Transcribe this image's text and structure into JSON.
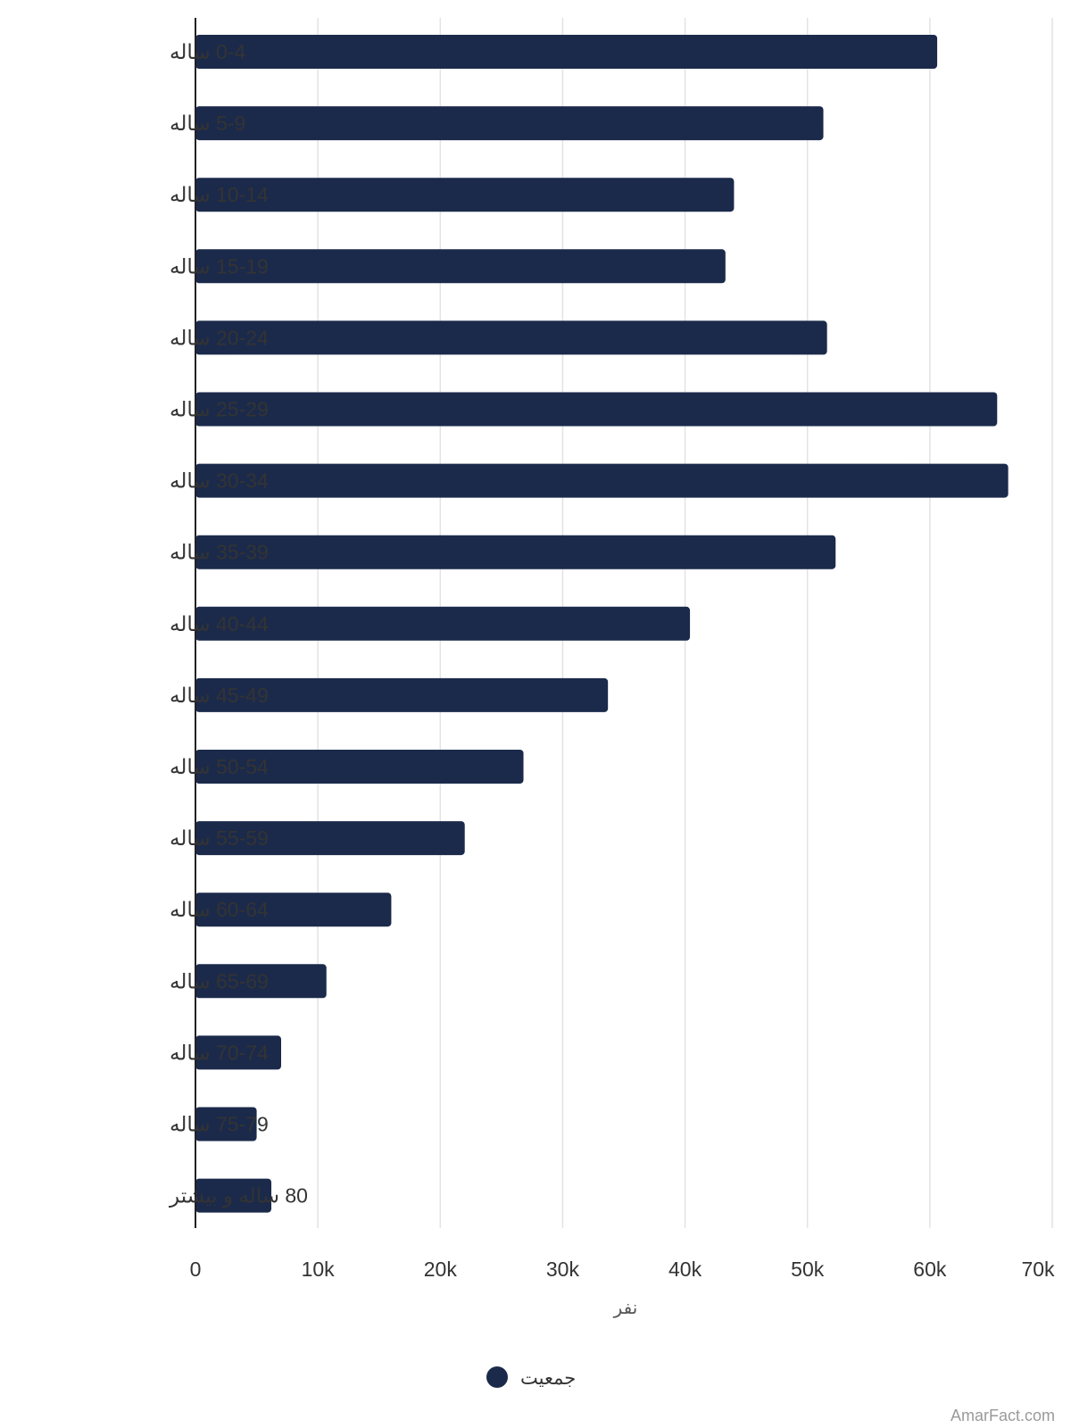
{
  "chart_data": {
    "type": "bar",
    "orientation": "horizontal",
    "categories": [
      "0-4 ساله",
      "5-9 ساله",
      "10-14 ساله",
      "15-19 ساله",
      "20-24 ساله",
      "25-29 ساله",
      "30-34 ساله",
      "35-39 ساله",
      "40-44 ساله",
      "45-49 ساله",
      "50-54 ساله",
      "55-59 ساله",
      "60-64 ساله",
      "65-69 ساله",
      "70-74 ساله",
      "75-79 ساله",
      "80 ساله و بیشتر"
    ],
    "series": [
      {
        "name": "جمعیت",
        "values": [
          60600,
          51300,
          44000,
          43300,
          51600,
          65500,
          66400,
          52300,
          40400,
          33700,
          26800,
          22000,
          16000,
          10700,
          7000,
          5000,
          6200
        ]
      }
    ],
    "xlim": [
      0,
      70000
    ],
    "xticks": [
      "0",
      "10k",
      "20k",
      "30k",
      "40k",
      "50k",
      "60k",
      "70k"
    ],
    "xlabel": "نفر",
    "ylabel": "",
    "grid": true,
    "legend_position": "bottom-center",
    "bar_color": "#1b2a4b"
  },
  "watermark": "AmarFact.com"
}
